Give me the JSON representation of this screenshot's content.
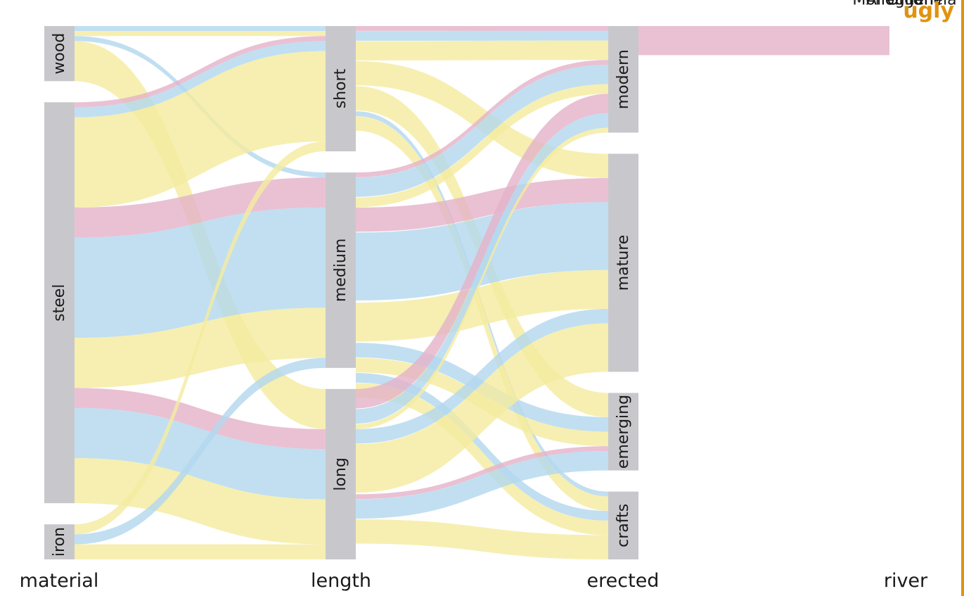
{
  "badge": "ugly",
  "colors": {
    "node": "#c8c8cc",
    "pink": "#e4b3c9",
    "blue": "#b3d8ee",
    "yellow": "#f4eca0",
    "badge": "#e0930f"
  },
  "chart_data": {
    "type": "alluvial",
    "axes": [
      "material",
      "length",
      "erected",
      "river"
    ],
    "nodes": {
      "material": [
        "wood",
        "steel",
        "iron"
      ],
      "length": [
        "short",
        "medium",
        "long"
      ],
      "erected": [
        "modern",
        "mature",
        "emerging",
        "crafts"
      ],
      "river": [
        "Ohio",
        "Monongahela",
        "Allegheny"
      ]
    },
    "series_colors_by_river": {
      "Ohio": "pink",
      "Monongahela": "blue",
      "Allegheny": "yellow"
    },
    "bands": [
      {
        "from": "wood",
        "to": "short",
        "river": "Monongahela",
        "value": 1
      },
      {
        "from": "wood",
        "to": "short",
        "river": "Allegheny",
        "value": 1
      },
      {
        "from": "wood",
        "to": "medium",
        "river": "Monongahela",
        "value": 1
      },
      {
        "from": "wood",
        "to": "long",
        "river": "Allegheny",
        "value": 8
      },
      {
        "from": "steel",
        "to": "short",
        "river": "Ohio",
        "value": 1
      },
      {
        "from": "steel",
        "to": "short",
        "river": "Monongahela",
        "value": 2
      },
      {
        "from": "steel",
        "to": "short",
        "river": "Allegheny",
        "value": 18
      },
      {
        "from": "steel",
        "to": "medium",
        "river": "Ohio",
        "value": 6
      },
      {
        "from": "steel",
        "to": "medium",
        "river": "Monongahela",
        "value": 20
      },
      {
        "from": "steel",
        "to": "medium",
        "river": "Allegheny",
        "value": 10
      },
      {
        "from": "steel",
        "to": "long",
        "river": "Ohio",
        "value": 4
      },
      {
        "from": "steel",
        "to": "long",
        "river": "Monongahela",
        "value": 10
      },
      {
        "from": "steel",
        "to": "long",
        "river": "Allegheny",
        "value": 9
      },
      {
        "from": "iron",
        "to": "short",
        "river": "Allegheny",
        "value": 2
      },
      {
        "from": "iron",
        "to": "medium",
        "river": "Monongahela",
        "value": 2
      },
      {
        "from": "iron",
        "to": "long",
        "river": "Allegheny",
        "value": 3
      },
      {
        "from": "short",
        "to": "modern",
        "river": "Ohio",
        "value": 1
      },
      {
        "from": "short",
        "to": "modern",
        "river": "Monongahela",
        "value": 2
      },
      {
        "from": "short",
        "to": "modern",
        "river": "Allegheny",
        "value": 4
      },
      {
        "from": "short",
        "to": "mature",
        "river": "Allegheny",
        "value": 5
      },
      {
        "from": "short",
        "to": "emerging",
        "river": "Allegheny",
        "value": 5
      },
      {
        "from": "short",
        "to": "crafts",
        "river": "Allegheny",
        "value": 3
      },
      {
        "from": "short",
        "to": "crafts",
        "river": "Monongahela",
        "value": 1
      },
      {
        "from": "medium",
        "to": "modern",
        "river": "Ohio",
        "value": 1
      },
      {
        "from": "medium",
        "to": "modern",
        "river": "Monongahela",
        "value": 4
      },
      {
        "from": "medium",
        "to": "modern",
        "river": "Allegheny",
        "value": 2
      },
      {
        "from": "medium",
        "to": "mature",
        "river": "Ohio",
        "value": 5
      },
      {
        "from": "medium",
        "to": "mature",
        "river": "Monongahela",
        "value": 14
      },
      {
        "from": "medium",
        "to": "mature",
        "river": "Allegheny",
        "value": 8
      },
      {
        "from": "medium",
        "to": "emerging",
        "river": "Monongahela",
        "value": 3
      },
      {
        "from": "medium",
        "to": "emerging",
        "river": "Allegheny",
        "value": 3
      },
      {
        "from": "medium",
        "to": "crafts",
        "river": "Monongahela",
        "value": 2
      },
      {
        "from": "medium",
        "to": "crafts",
        "river": "Allegheny",
        "value": 3
      },
      {
        "from": "long",
        "to": "modern",
        "river": "Ohio",
        "value": 4
      },
      {
        "from": "long",
        "to": "modern",
        "river": "Monongahela",
        "value": 3
      },
      {
        "from": "long",
        "to": "modern",
        "river": "Allegheny",
        "value": 1
      },
      {
        "from": "long",
        "to": "mature",
        "river": "Monongahela",
        "value": 3
      },
      {
        "from": "long",
        "to": "mature",
        "river": "Allegheny",
        "value": 10
      },
      {
        "from": "long",
        "to": "emerging",
        "river": "Ohio",
        "value": 1
      },
      {
        "from": "long",
        "to": "emerging",
        "river": "Monongahela",
        "value": 4
      },
      {
        "from": "long",
        "to": "crafts",
        "river": "Allegheny",
        "value": 5
      }
    ]
  }
}
